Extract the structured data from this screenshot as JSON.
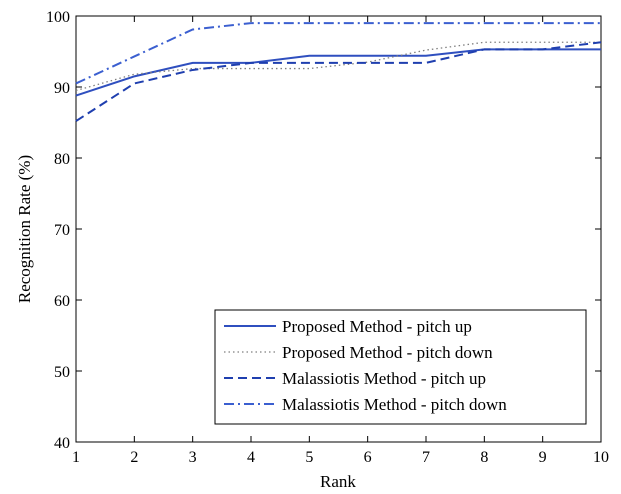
{
  "chart_data": {
    "type": "line",
    "title": "",
    "xlabel": "Rank",
    "ylabel": "Recognition Rate (%)",
    "xlim": [
      1,
      10
    ],
    "ylim": [
      40,
      100
    ],
    "xticks": [
      1,
      2,
      3,
      4,
      5,
      6,
      7,
      8,
      9,
      10
    ],
    "yticks": [
      40,
      50,
      60,
      70,
      80,
      90,
      100
    ],
    "grid": false,
    "legend_position": "bottom-right",
    "x": [
      1,
      2,
      3,
      4,
      5,
      6,
      7,
      8,
      9,
      10
    ],
    "series": [
      {
        "name": "Proposed Method - pitch up",
        "style": "solid",
        "color": "#2f4fbf",
        "values": [
          88.8,
          91.5,
          93.4,
          93.4,
          94.4,
          94.4,
          94.4,
          95.3,
          95.3,
          95.3
        ]
      },
      {
        "name": "Proposed Method - pitch down",
        "style": "dotted",
        "color": "#7f7f7f",
        "values": [
          89.5,
          91.8,
          92.6,
          92.6,
          92.6,
          93.5,
          95.2,
          96.3,
          96.3,
          96.3
        ]
      },
      {
        "name": "Malassiotis Method - pitch up",
        "style": "dashed",
        "color": "#1f3faf",
        "values": [
          85.2,
          90.5,
          92.4,
          93.4,
          93.4,
          93.4,
          93.4,
          95.3,
          95.3,
          96.3
        ]
      },
      {
        "name": "Malassiotis Method - pitch down",
        "style": "dashdot",
        "color": "#3b5fd0",
        "values": [
          90.5,
          94.3,
          98.1,
          99.0,
          99.0,
          99.0,
          99.0,
          99.0,
          99.0,
          99.0
        ]
      }
    ]
  }
}
